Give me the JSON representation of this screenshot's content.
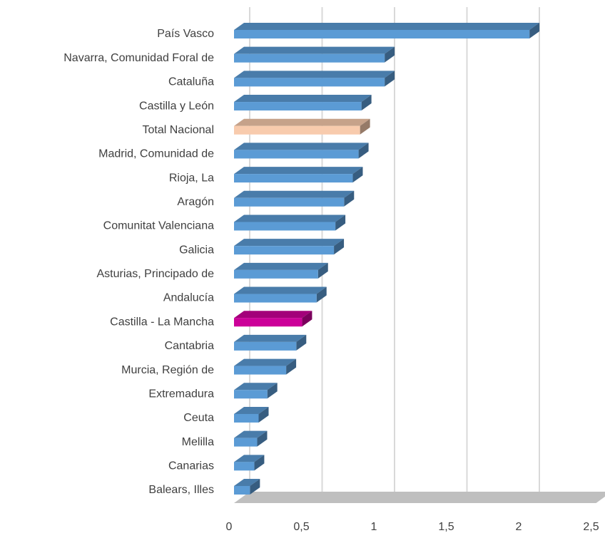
{
  "chart_data": {
    "type": "bar3d-horizontal",
    "categories": [
      "País Vasco",
      "Navarra, Comunidad Foral de",
      "Cataluña",
      "Castilla y León",
      "Total Nacional",
      "Madrid, Comunidad de",
      "Rioja, La",
      "Aragón",
      "Comunitat Valenciana",
      "Galicia",
      "Asturias, Principado de",
      "Andalucía",
      "Castilla - La Mancha",
      "Cantabria",
      "Murcia, Región de",
      "Extremadura",
      "Ceuta",
      "Melilla",
      "Canarias",
      "Balears, Illes"
    ],
    "values": [
      2.04,
      1.04,
      1.04,
      0.88,
      0.87,
      0.86,
      0.82,
      0.76,
      0.7,
      0.69,
      0.58,
      0.57,
      0.47,
      0.43,
      0.36,
      0.23,
      0.17,
      0.16,
      0.14,
      0.11
    ],
    "colors": [
      "#5b9bd5",
      "#5b9bd5",
      "#5b9bd5",
      "#5b9bd5",
      "#f8cbad",
      "#5b9bd5",
      "#5b9bd5",
      "#5b9bd5",
      "#5b9bd5",
      "#5b9bd5",
      "#5b9bd5",
      "#5b9bd5",
      "#cc0099",
      "#5b9bd5",
      "#5b9bd5",
      "#5b9bd5",
      "#5b9bd5",
      "#5b9bd5",
      "#5b9bd5",
      "#5b9bd5"
    ],
    "xlim": [
      0,
      2.5
    ],
    "xticks": [
      0,
      {
        "value": 0.5,
        "label": "0,5"
      },
      1,
      {
        "value": 1.5,
        "label": "1,5"
      },
      2,
      {
        "value": 2.5,
        "label": "2,5"
      }
    ],
    "grid": true
  }
}
